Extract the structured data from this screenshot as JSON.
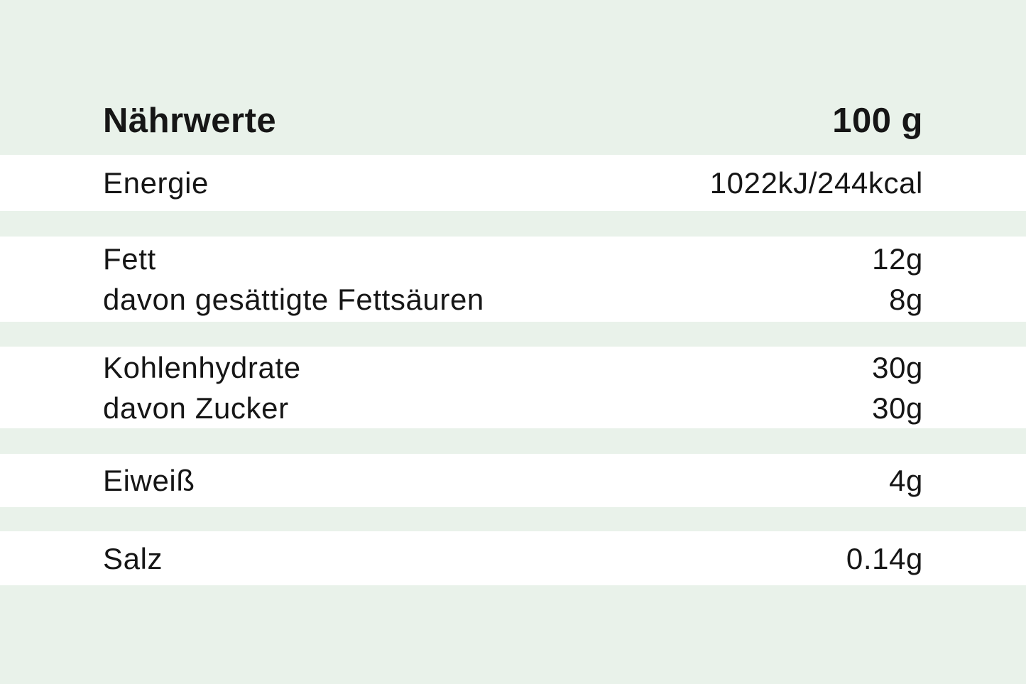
{
  "colors": {
    "page_background": "#e9f2ea",
    "row_background": "#ffffff",
    "text": "#161616"
  },
  "header": {
    "title": "Nährwerte",
    "amount_label": "100 g"
  },
  "rows": [
    {
      "lines": [
        {
          "label": "Energie",
          "value": "1022kJ/244kcal"
        }
      ]
    },
    {
      "lines": [
        {
          "label": "Fett",
          "value": "12g"
        },
        {
          "label": "davon gesättigte Fettsäuren",
          "value": "8g"
        }
      ]
    },
    {
      "lines": [
        {
          "label": "Kohlenhydrate",
          "value": "30g"
        },
        {
          "label": "davon Zucker",
          "value": "30g"
        }
      ]
    },
    {
      "lines": [
        {
          "label": "Eiweiß",
          "value": "4g"
        }
      ]
    },
    {
      "lines": [
        {
          "label": "Salz",
          "value": "0.14g"
        }
      ]
    }
  ]
}
